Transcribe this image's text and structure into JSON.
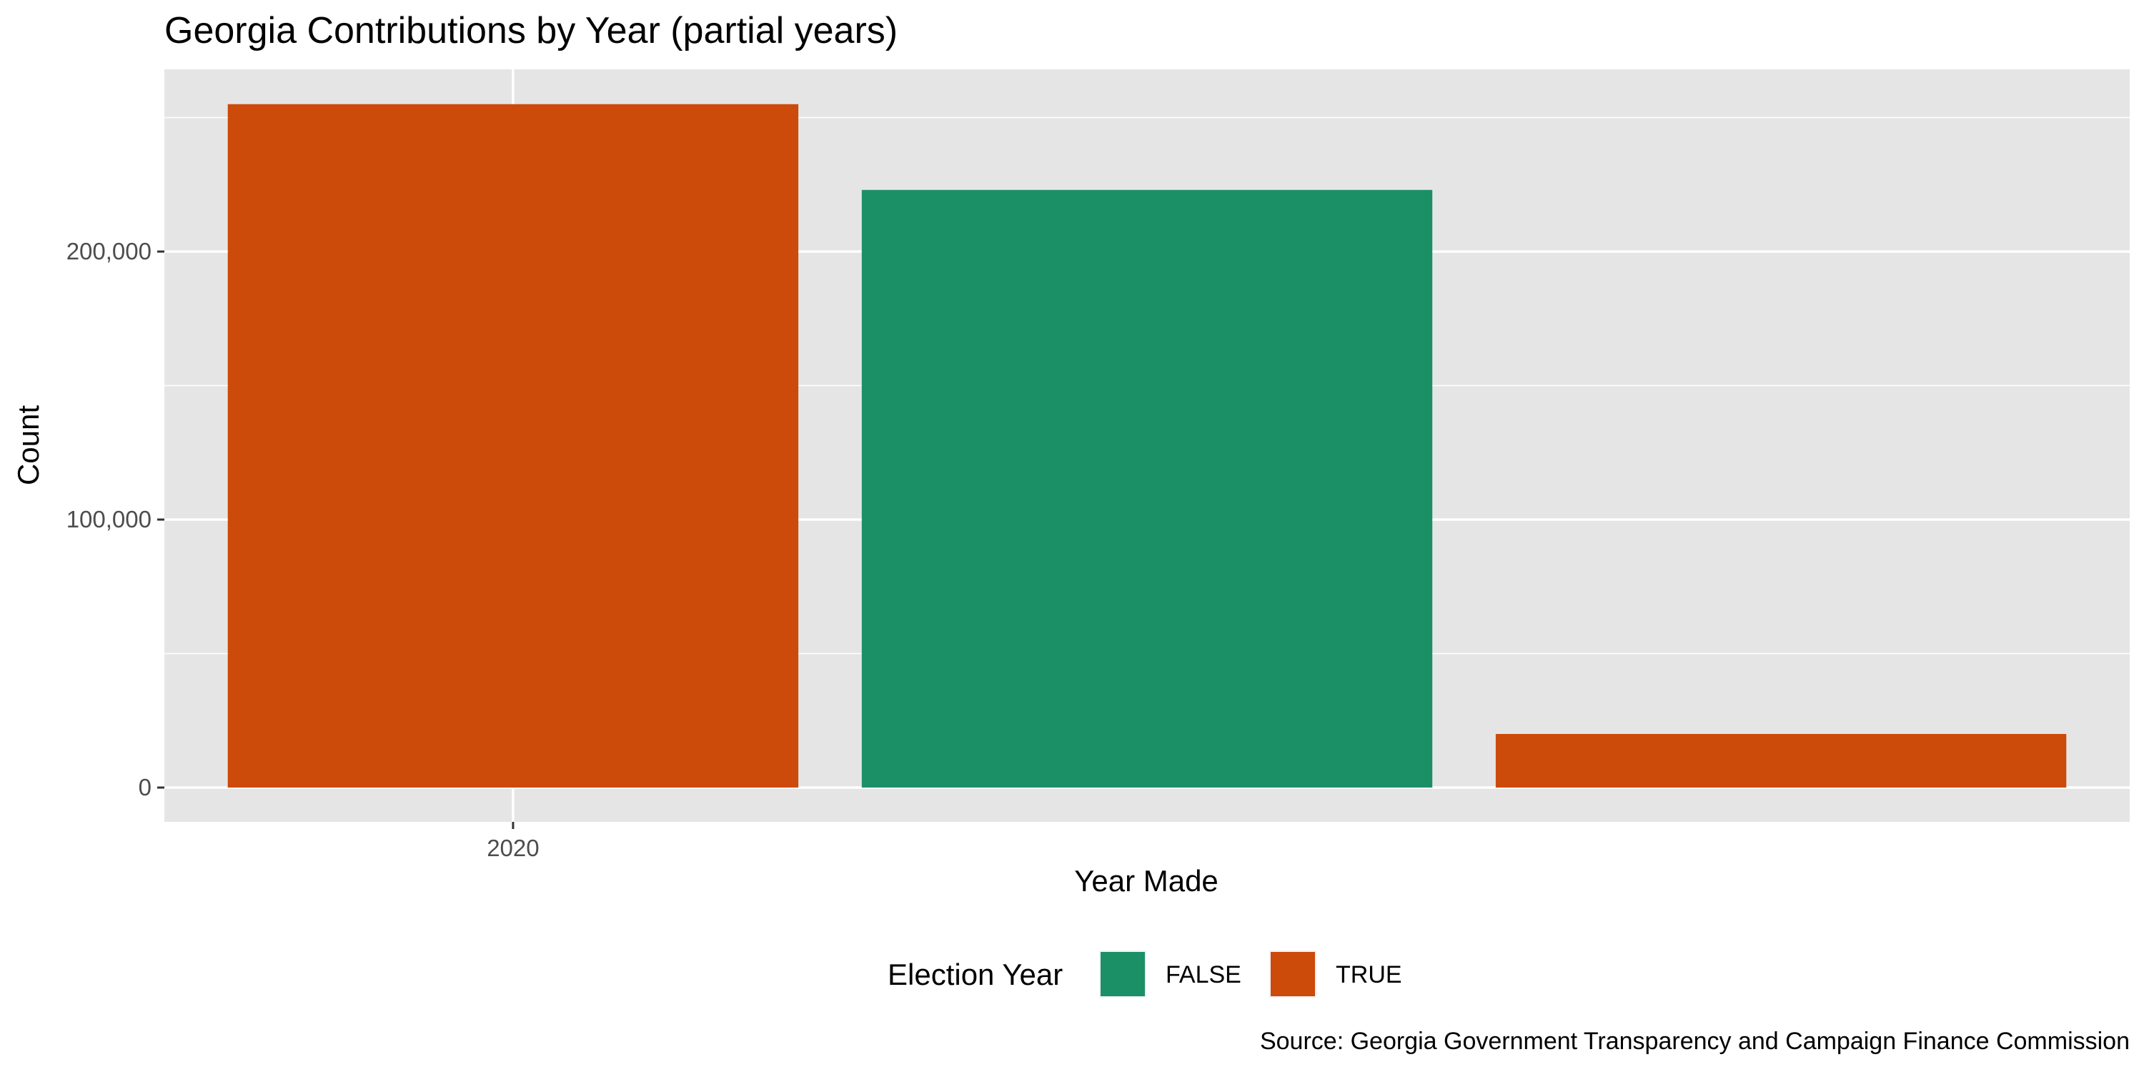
{
  "chart_data": {
    "type": "bar",
    "title": "Georgia Contributions by Year (partial years)",
    "xlabel": "Year Made",
    "ylabel": "Count",
    "caption": "Source: Georgia Government Transparency and Campaign Finance Commission",
    "x_tick_labels": [
      {
        "label": "2020",
        "x": 2020
      }
    ],
    "y_ticks": [
      0,
      100000,
      200000
    ],
    "y_tick_labels": [
      "0",
      "100,000",
      "200,000"
    ],
    "ylim": [
      0,
      268000
    ],
    "xlim": [
      2019.45,
      2022.55
    ],
    "bars": [
      {
        "x": 2020,
        "value": 255000,
        "election_year": "TRUE"
      },
      {
        "x": 2021,
        "value": 223000,
        "election_year": "FALSE"
      },
      {
        "x": 2022,
        "value": 20000,
        "election_year": "TRUE"
      }
    ],
    "bar_width": 0.9,
    "legend": {
      "title": "Election Year",
      "position": "bottom",
      "entries": [
        {
          "label": "FALSE",
          "color": "#1b9066"
        },
        {
          "label": "TRUE",
          "color": "#cc4a0a"
        }
      ]
    },
    "colors": {
      "FALSE": "#1b9066",
      "TRUE": "#cc4a0a",
      "panel": "#e5e5e5",
      "grid": "#ffffff"
    },
    "grid": true
  }
}
